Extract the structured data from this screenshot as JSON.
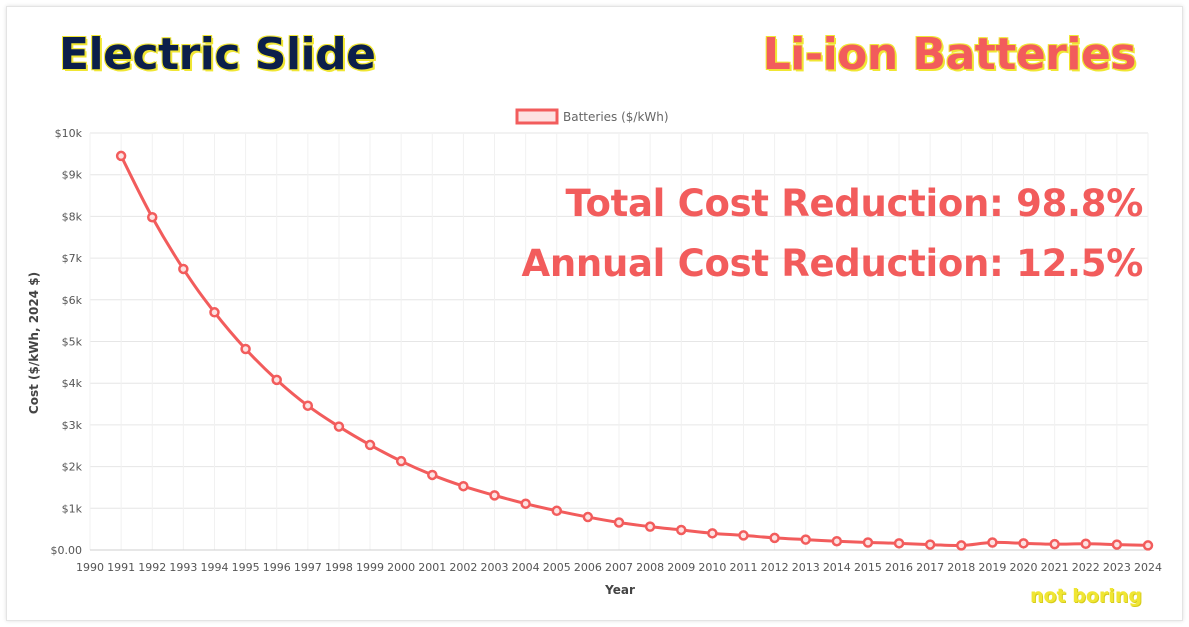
{
  "header": {
    "left_title": "Electric Slide",
    "right_title": "Li-ion Batteries"
  },
  "stats": {
    "total": "Total Cost Reduction: 98.8%",
    "annual": "Annual Cost Reduction: 12.5%"
  },
  "brand": "not boring",
  "colors": {
    "accent": "#f25c5c",
    "navy": "#0b1f4b",
    "highlight": "#f0e633",
    "legend_fill": "#fde2e2"
  },
  "chart_data": {
    "type": "line",
    "title": "",
    "xlabel": "Year",
    "ylabel": "Cost ($/kWh, 2024 $)",
    "legend_position": "top-center",
    "grid": true,
    "x_ticks": [
      "1990",
      "1991",
      "1992",
      "1993",
      "1994",
      "1995",
      "1996",
      "1997",
      "1998",
      "1999",
      "2000",
      "2001",
      "2002",
      "2003",
      "2004",
      "2005",
      "2006",
      "2007",
      "2008",
      "2009",
      "2010",
      "2011",
      "2012",
      "2013",
      "2014",
      "2015",
      "2016",
      "2017",
      "2018",
      "2019",
      "2020",
      "2021",
      "2022",
      "2023",
      "2024"
    ],
    "y_ticks": [
      {
        "value": 0,
        "label": "$0.00"
      },
      {
        "value": 1000,
        "label": "$1k"
      },
      {
        "value": 2000,
        "label": "$2k"
      },
      {
        "value": 3000,
        "label": "$3k"
      },
      {
        "value": 4000,
        "label": "$4k"
      },
      {
        "value": 5000,
        "label": "$5k"
      },
      {
        "value": 6000,
        "label": "$6k"
      },
      {
        "value": 7000,
        "label": "$7k"
      },
      {
        "value": 8000,
        "label": "$8k"
      },
      {
        "value": 9000,
        "label": "$9k"
      },
      {
        "value": 10000,
        "label": "$10k"
      }
    ],
    "xlim": [
      1990,
      2024
    ],
    "ylim": [
      0,
      10000
    ],
    "series": [
      {
        "name": "Batteries ($/kWh)",
        "color": "#f25c5c",
        "x": [
          1991,
          1992,
          1993,
          1994,
          1995,
          1996,
          1997,
          1998,
          1999,
          2000,
          2001,
          2002,
          2003,
          2004,
          2005,
          2006,
          2007,
          2008,
          2009,
          2010,
          2011,
          2012,
          2013,
          2014,
          2015,
          2016,
          2017,
          2018,
          2019,
          2020,
          2021,
          2022,
          2023,
          2024
        ],
        "values": [
          9450,
          7980,
          6740,
          5700,
          4820,
          4080,
          3460,
          2960,
          2520,
          2130,
          1800,
          1530,
          1310,
          1110,
          940,
          790,
          660,
          560,
          480,
          400,
          350,
          290,
          250,
          210,
          180,
          160,
          130,
          110,
          180,
          160,
          140,
          150,
          130,
          110
        ]
      }
    ]
  }
}
